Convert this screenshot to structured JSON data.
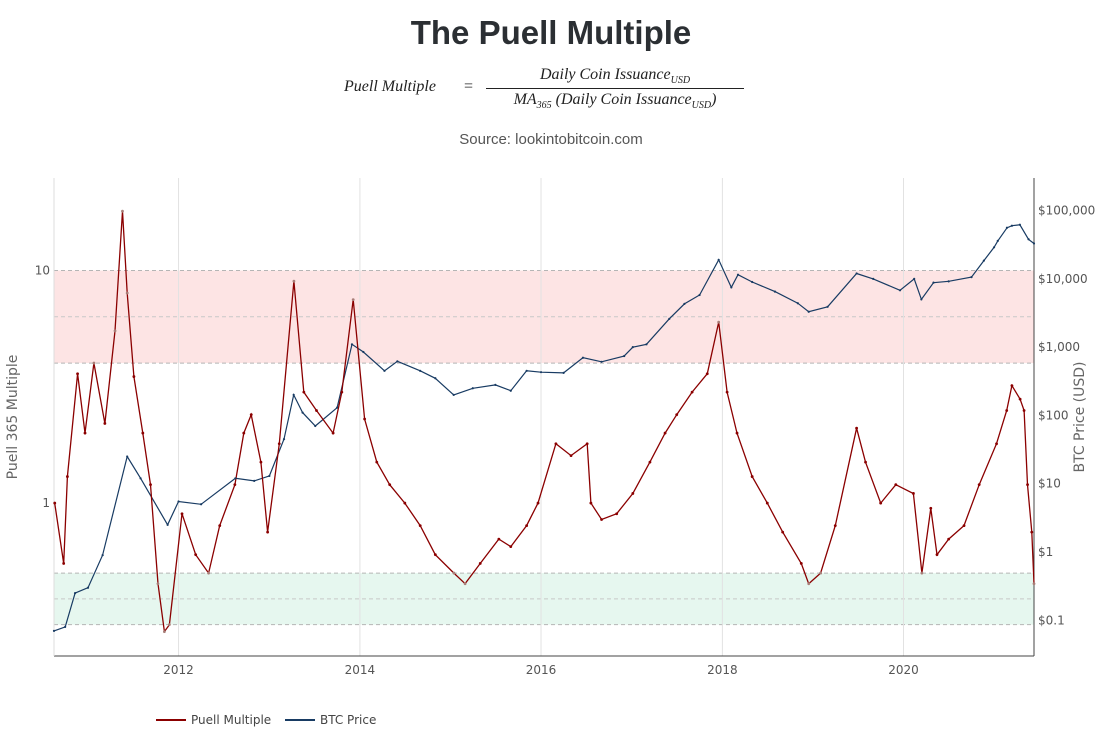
{
  "title": "The Puell Multiple",
  "formula": {
    "lhs": "Puell Multiple",
    "equals": "=",
    "numerator": "Daily Coin Issuance",
    "numerator_sub": "USD",
    "denominator_prefix": "MA",
    "denominator_prefix_sub": "365",
    "denominator_body": "(Daily Coin Issuance",
    "denominator_body_sub": "USD",
    "denominator_close": ")"
  },
  "source": "Source: lookintobitcoin.com",
  "colors": {
    "puell": "#8b0000",
    "puell_faded": "#a87e78",
    "btc": "#183b63",
    "red_band": "#fde4e4",
    "green_band": "#e6f7ef"
  },
  "chart_data": {
    "type": "line",
    "x_axis": {
      "ticks": [
        "2012",
        "2014",
        "2016",
        "2018",
        "2020"
      ],
      "range": [
        "2010-08-17",
        "2021-06-10"
      ]
    },
    "y_left": {
      "label": "Puell 365 Multiple",
      "scale": "log",
      "ticks": [
        "1",
        "10"
      ],
      "range": [
        0.22,
        25
      ]
    },
    "y_right": {
      "label": "BTC Price (USD)",
      "scale": "log",
      "ticks": [
        "$0.1",
        "$1",
        "$10",
        "$100",
        "$1,000",
        "$10,000",
        "$100,000"
      ],
      "range": [
        0.03,
        300000
      ]
    },
    "bands": [
      {
        "name": "red",
        "from": 4,
        "to": 10
      },
      {
        "name": "green",
        "from": 0.3,
        "to": 0.5
      }
    ],
    "series": [
      {
        "name": "Puell Multiple",
        "axis": "left",
        "x": [
          "2010-08-20",
          "2010-09-25",
          "2010-10-10",
          "2010-11-20",
          "2010-12-20",
          "2011-01-25",
          "2011-03-10",
          "2011-04-20",
          "2011-05-20",
          "2011-06-08",
          "2011-07-05",
          "2011-08-10",
          "2011-09-10",
          "2011-10-10",
          "2011-11-05",
          "2011-11-25",
          "2012-01-15",
          "2012-03-10",
          "2012-05-01",
          "2012-06-15",
          "2012-08-15",
          "2012-09-20",
          "2012-10-20",
          "2012-11-28",
          "2012-12-25",
          "2013-02-10",
          "2013-04-10",
          "2013-05-20",
          "2013-07-10",
          "2013-09-15",
          "2013-10-20",
          "2013-12-05",
          "2014-01-20",
          "2014-03-10",
          "2014-05-01",
          "2014-07-01",
          "2014-09-01",
          "2014-11-01",
          "2015-01-15",
          "2015-03-01",
          "2015-05-01",
          "2015-07-15",
          "2015-09-01",
          "2015-11-04",
          "2015-12-20",
          "2016-03-01",
          "2016-05-01",
          "2016-07-05",
          "2016-07-20",
          "2016-09-01",
          "2016-11-01",
          "2017-01-05",
          "2017-03-15",
          "2017-05-15",
          "2017-07-01",
          "2017-09-01",
          "2017-11-01",
          "2017-12-17",
          "2018-01-20",
          "2018-03-01",
          "2018-05-01",
          "2018-07-01",
          "2018-09-01",
          "2018-11-15",
          "2018-12-15",
          "2019-02-01",
          "2019-04-01",
          "2019-06-26",
          "2019-08-01",
          "2019-10-01",
          "2019-12-01",
          "2020-02-10",
          "2020-03-15",
          "2020-04-20",
          "2020-05-15",
          "2020-07-01",
          "2020-09-01",
          "2020-11-01",
          "2021-01-10",
          "2021-02-20",
          "2021-03-13",
          "2021-04-15",
          "2021-05-01",
          "2021-05-15",
          "2021-06-01",
          "2021-06-10"
        ],
        "y": [
          1.0,
          0.55,
          1.3,
          3.6,
          2.0,
          4.0,
          2.2,
          5.5,
          18,
          8.0,
          3.5,
          2.0,
          1.2,
          0.45,
          0.28,
          0.3,
          0.9,
          0.6,
          0.5,
          0.8,
          1.2,
          2.0,
          2.4,
          1.5,
          0.75,
          1.8,
          9.0,
          3.0,
          2.5,
          2.0,
          3.0,
          7.5,
          2.3,
          1.5,
          1.2,
          1.0,
          0.8,
          0.6,
          0.5,
          0.45,
          0.55,
          0.7,
          0.65,
          0.8,
          1.0,
          1.8,
          1.6,
          1.8,
          1.0,
          0.85,
          0.9,
          1.1,
          1.5,
          2.0,
          2.4,
          3.0,
          3.6,
          6.0,
          3.0,
          2.0,
          1.3,
          1.0,
          0.75,
          0.55,
          0.45,
          0.5,
          0.8,
          2.1,
          1.5,
          1.0,
          1.2,
          1.1,
          0.5,
          0.95,
          0.6,
          0.7,
          0.8,
          1.2,
          1.8,
          2.5,
          3.2,
          2.8,
          2.5,
          1.2,
          0.75,
          0.45
        ]
      },
      {
        "name": "BTC Price",
        "axis": "right",
        "x": [
          "2010-08-17",
          "2010-10-01",
          "2010-11-10",
          "2011-01-01",
          "2011-03-01",
          "2011-06-08",
          "2011-08-01",
          "2011-11-18",
          "2012-01-01",
          "2012-04-01",
          "2012-08-17",
          "2012-11-01",
          "2013-01-01",
          "2013-03-01",
          "2013-04-09",
          "2013-05-15",
          "2013-07-05",
          "2013-10-01",
          "2013-11-30",
          "2014-01-15",
          "2014-04-10",
          "2014-06-01",
          "2014-09-01",
          "2014-11-01",
          "2015-01-14",
          "2015-04-01",
          "2015-07-01",
          "2015-09-01",
          "2015-11-04",
          "2016-01-01",
          "2016-04-01",
          "2016-06-18",
          "2016-09-01",
          "2016-12-01",
          "2017-01-05",
          "2017-03-01",
          "2017-06-01",
          "2017-08-01",
          "2017-10-01",
          "2017-12-17",
          "2018-02-06",
          "2018-03-05",
          "2018-05-01",
          "2018-08-01",
          "2018-11-01",
          "2018-12-15",
          "2019-03-01",
          "2019-06-26",
          "2019-09-01",
          "2019-12-18",
          "2020-02-13",
          "2020-03-13",
          "2020-05-01",
          "2020-07-01",
          "2020-10-01",
          "2020-11-20",
          "2020-12-31",
          "2021-01-15",
          "2021-02-21",
          "2021-03-13",
          "2021-04-14",
          "2021-05-19",
          "2021-06-10"
        ],
        "y": [
          0.07,
          0.08,
          0.25,
          0.3,
          0.9,
          25,
          12,
          2.5,
          5.5,
          5,
          12,
          11,
          13,
          45,
          200,
          110,
          70,
          130,
          1100,
          850,
          450,
          620,
          450,
          350,
          200,
          250,
          280,
          230,
          450,
          430,
          420,
          700,
          610,
          740,
          1000,
          1100,
          2600,
          4300,
          5800,
          19000,
          7500,
          11500,
          9000,
          6500,
          4400,
          3300,
          3900,
          12000,
          10000,
          6800,
          10000,
          5000,
          8800,
          9200,
          10600,
          18500,
          29000,
          36000,
          56000,
          60000,
          62000,
          38000,
          33000
        ]
      }
    ]
  }
}
